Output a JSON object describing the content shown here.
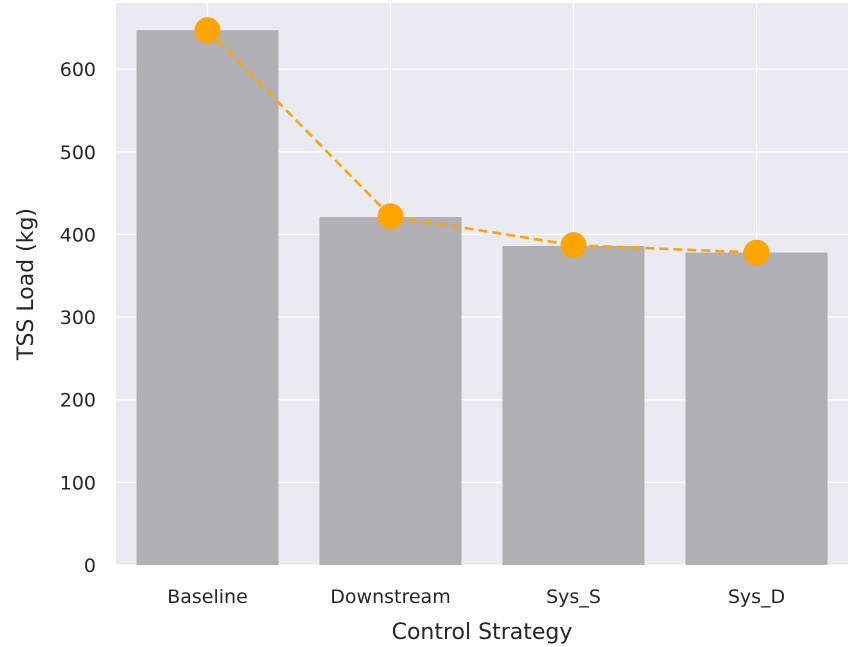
{
  "chart_data": {
    "type": "bar",
    "categories": [
      "Baseline",
      "Downstream",
      "Sys_S",
      "Sys_D"
    ],
    "series": [
      {
        "values": [
          647,
          421,
          386,
          378
        ]
      }
    ],
    "line_overlay": {
      "values": [
        647,
        422,
        387,
        378
      ],
      "style": "dashed",
      "marker": "circle"
    },
    "title": "",
    "xlabel": "Control Strategy",
    "ylabel": "TSS Load (kg)",
    "ylim": [
      0,
      680
    ],
    "yticks": [
      0,
      100,
      200,
      300,
      400,
      500,
      600
    ],
    "grid": true,
    "colors": {
      "background": "#EAEAF2",
      "bar": "#B0AFB4",
      "line": "#FFA500",
      "grid": "#FFFFFF"
    }
  }
}
